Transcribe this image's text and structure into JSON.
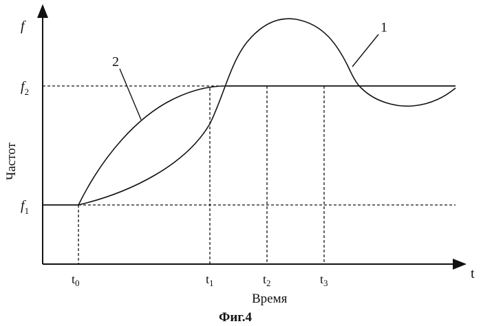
{
  "axes": {
    "y_label": "f",
    "x_label": "t",
    "y_title": "Частот",
    "x_title": "Время"
  },
  "levels": {
    "f1": {
      "base": "f",
      "sub": "1"
    },
    "f2": {
      "base": "f",
      "sub": "2"
    }
  },
  "times": [
    {
      "base": "t",
      "sub": "0"
    },
    {
      "base": "t",
      "sub": "1"
    },
    {
      "base": "t",
      "sub": "2"
    },
    {
      "base": "t",
      "sub": "3"
    }
  ],
  "curve_labels": {
    "curve1": "1",
    "curve2": "2"
  },
  "caption": "Фиг.4"
}
